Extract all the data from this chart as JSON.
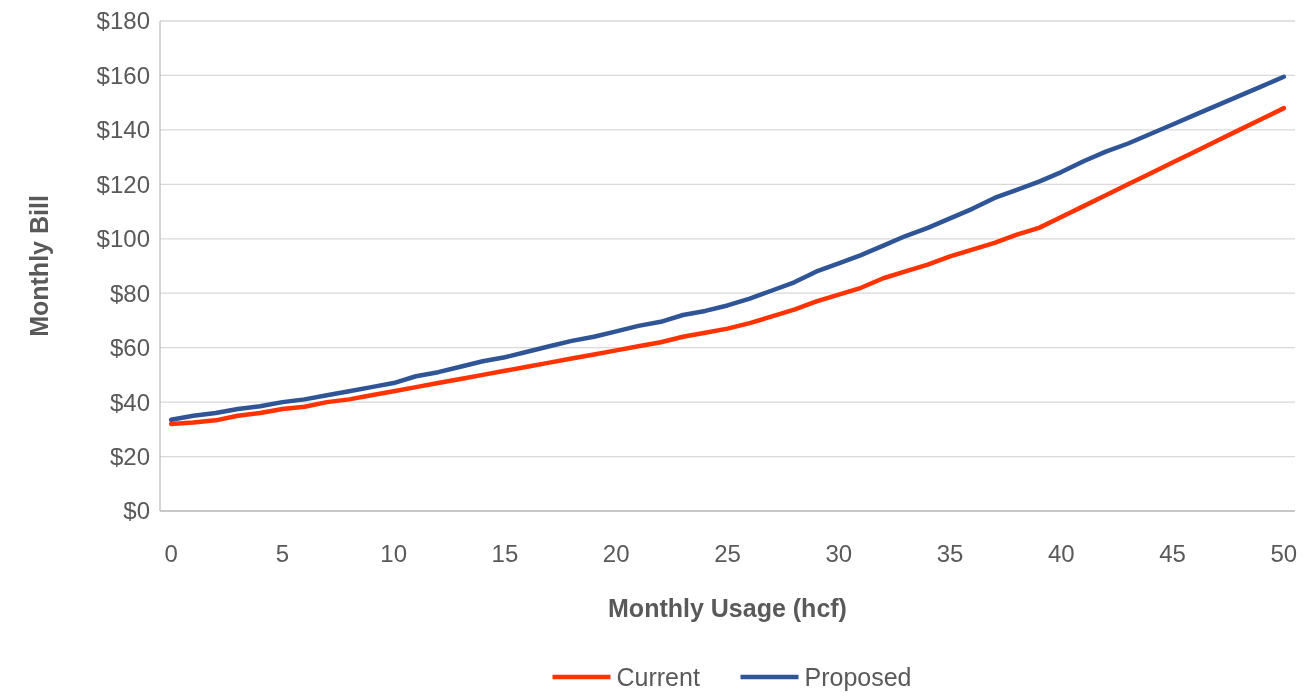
{
  "chart_data": {
    "type": "line",
    "xlabel": "Monthly Usage (hcf)",
    "ylabel": "Monthly Bill",
    "x": [
      0,
      1,
      2,
      3,
      4,
      5,
      6,
      7,
      8,
      9,
      10,
      11,
      12,
      13,
      14,
      15,
      16,
      17,
      18,
      19,
      20,
      21,
      22,
      23,
      24,
      25,
      26,
      27,
      28,
      29,
      30,
      31,
      32,
      33,
      34,
      35,
      36,
      37,
      38,
      39,
      40,
      41,
      42,
      43,
      44,
      45,
      46,
      47,
      48,
      49,
      50
    ],
    "series": [
      {
        "name": "Current",
        "color": "#ff3300",
        "values": [
          32,
          32.5,
          33.3,
          35,
          36,
          37.5,
          38.3,
          40,
          41,
          42.5,
          44,
          45.5,
          47,
          48.5,
          50,
          51.5,
          53,
          54.5,
          56,
          57.5,
          59,
          60.5,
          62,
          64,
          65.5,
          67,
          69,
          71.5,
          74,
          77,
          79.5,
          82,
          85.5,
          88,
          90.5,
          93.5,
          96,
          98.5,
          101.5,
          104,
          108,
          112,
          116,
          120,
          124,
          128,
          132,
          136,
          140,
          144,
          148
        ]
      },
      {
        "name": "Proposed",
        "color": "#2f5597",
        "values": [
          33.5,
          35,
          36,
          37.5,
          38.5,
          40,
          41,
          42.5,
          44,
          45.5,
          47,
          49.5,
          51,
          53,
          55,
          56.5,
          58.5,
          60.5,
          62.5,
          64,
          66,
          68,
          69.5,
          72,
          73.5,
          75.5,
          78,
          81,
          84,
          88,
          91,
          94,
          97.5,
          101,
          104,
          107.5,
          111,
          115,
          118,
          121,
          124.5,
          128.5,
          132,
          135,
          138.5,
          142,
          145.5,
          149,
          152.5,
          156,
          159.5
        ]
      }
    ],
    "xlim": [
      -0.5,
      50.5
    ],
    "xticks": [
      0,
      5,
      10,
      15,
      20,
      25,
      30,
      35,
      40,
      45,
      50
    ],
    "ylim": [
      0,
      180
    ],
    "yticks": [
      {
        "value": 0,
        "label": "$0"
      },
      {
        "value": 20,
        "label": "$20"
      },
      {
        "value": 40,
        "label": "$40"
      },
      {
        "value": 60,
        "label": "$60"
      },
      {
        "value": 80,
        "label": "$80"
      },
      {
        "value": 100,
        "label": "$100"
      },
      {
        "value": 120,
        "label": "$120"
      },
      {
        "value": 140,
        "label": "$140"
      },
      {
        "value": 160,
        "label": "$160"
      },
      {
        "value": 180,
        "label": "$180"
      }
    ],
    "grid": "y",
    "legend": "bottom",
    "marker": "none",
    "line_style": "solid"
  }
}
